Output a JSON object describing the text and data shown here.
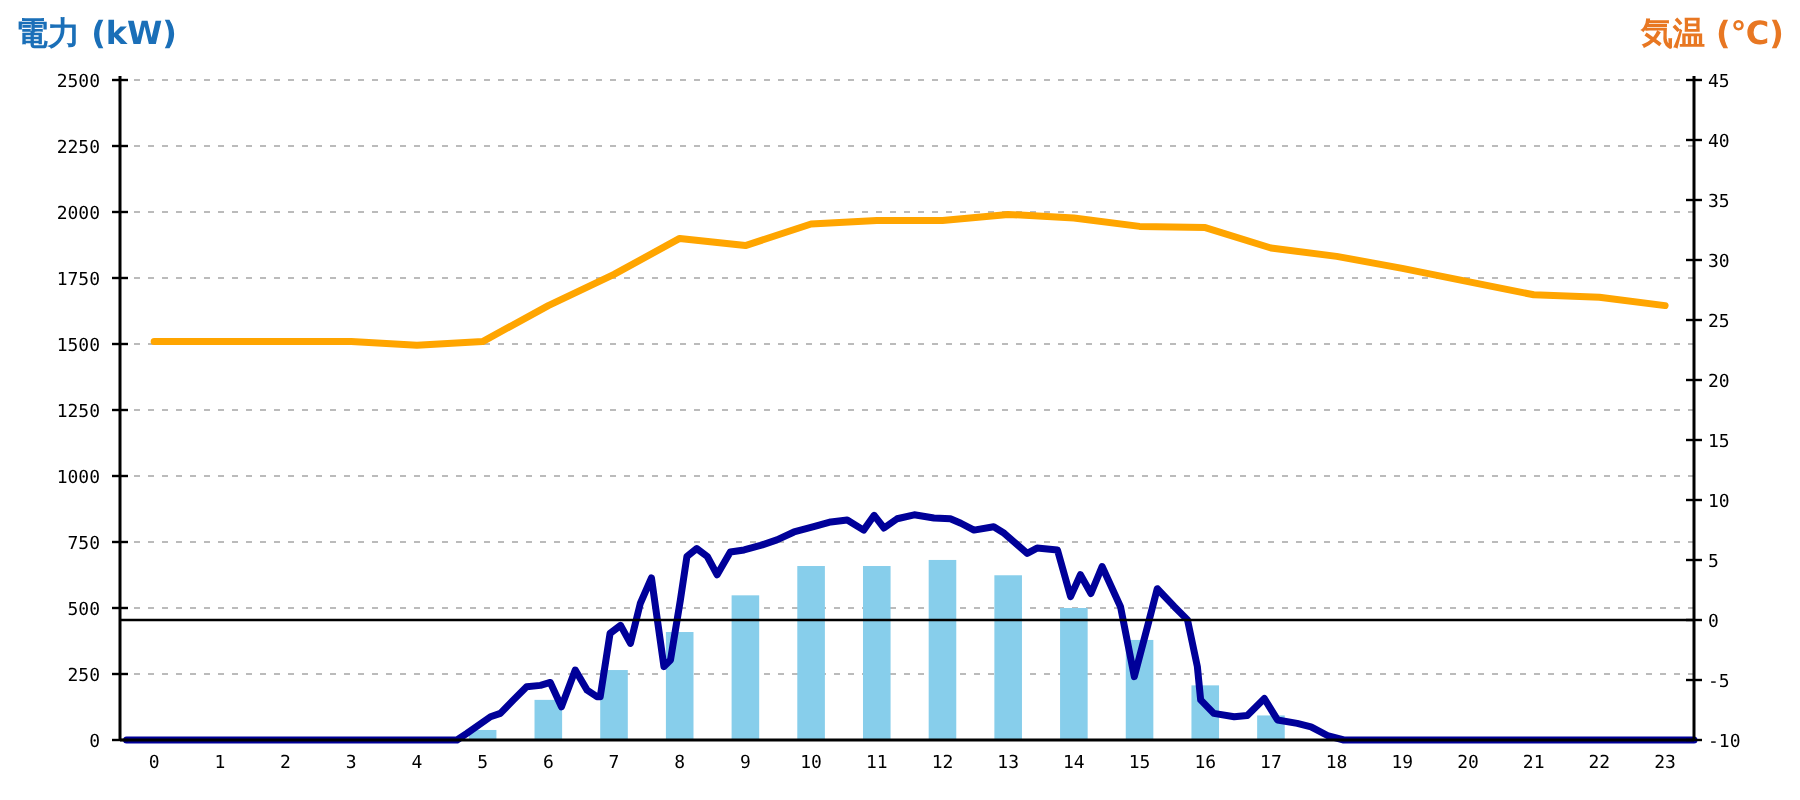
{
  "chart_data": {
    "type": "bar",
    "ylabel": "電力 (kW)",
    "y2label": "気温 (℃)",
    "x": [
      0,
      1,
      2,
      3,
      4,
      5,
      6,
      7,
      8,
      9,
      10,
      11,
      12,
      13,
      14,
      15,
      16,
      17,
      18,
      19,
      20,
      21,
      22,
      23
    ],
    "xlim": [
      -0.52,
      23.44
    ],
    "xticks": [
      0,
      1,
      2,
      3,
      4,
      5,
      6,
      7,
      8,
      9,
      10,
      11,
      12,
      13,
      14,
      15,
      16,
      17,
      18,
      19,
      20,
      21,
      22,
      23
    ],
    "ylim": [
      0,
      2500
    ],
    "yticks": [
      0,
      250,
      500,
      750,
      1000,
      1250,
      1500,
      1750,
      2000,
      2250,
      2500
    ],
    "y2lim": [
      -10,
      45
    ],
    "y2ticks": [
      -10,
      -5,
      0,
      5,
      10,
      15,
      20,
      25,
      30,
      35,
      40,
      45
    ],
    "grid": "y",
    "marker": "none",
    "line_style": "solid",
    "series": [
      {
        "color": "#87ceeb",
        "values": [
          0,
          0,
          0,
          0,
          0,
          38,
          152,
          265,
          409,
          548,
          659,
          659,
          682,
          624,
          500,
          379,
          207,
          93,
          0,
          0,
          0,
          0,
          0,
          0
        ]
      },
      {
        "type": "line",
        "color": "#000099",
        "x": [
          -0.42,
          4.61,
          4.76,
          5.12,
          5.27,
          5.47,
          5.67,
          5.88,
          6.03,
          6.2,
          6.41,
          6.59,
          6.74,
          6.79,
          6.94,
          7.1,
          7.25,
          7.4,
          7.57,
          7.76,
          7.86,
          8.01,
          8.11,
          8.26,
          8.42,
          8.57,
          8.77,
          8.98,
          9.23,
          9.48,
          9.74,
          10.04,
          10.3,
          10.55,
          10.8,
          10.96,
          11.11,
          11.31,
          11.57,
          11.87,
          12.12,
          12.28,
          12.48,
          12.78,
          12.94,
          13.29,
          13.44,
          13.75,
          13.95,
          14.1,
          14.26,
          14.43,
          14.71,
          14.92,
          15.12,
          15.27,
          15.53,
          15.73,
          15.88,
          15.93,
          16.13,
          16.44,
          16.64,
          16.9,
          17.1,
          17.4,
          17.61,
          17.86,
          18.11,
          23.44
        ],
        "values": [
          0,
          0,
          25,
          88,
          101,
          152,
          202,
          207,
          218,
          126,
          265,
          189,
          164,
          164,
          404,
          434,
          366,
          517,
          614,
          278,
          303,
          530,
          695,
          725,
          695,
          626,
          712,
          720,
          737,
          758,
          788,
          808,
          826,
          833,
          795,
          851,
          803,
          838,
          853,
          841,
          838,
          821,
          795,
          808,
          783,
          707,
          727,
          720,
          543,
          626,
          555,
          657,
          505,
          240,
          429,
          573,
          505,
          455,
          278,
          152,
          101,
          88,
          93,
          157,
          76,
          63,
          50,
          17,
          0,
          0
        ]
      },
      {
        "type": "line",
        "axis": "y2",
        "color": "#ffa500",
        "values": [
          23.2,
          23.2,
          23.2,
          23.2,
          22.9,
          23.2,
          26.2,
          28.8,
          31.8,
          31.2,
          33,
          33.3,
          33.3,
          33.8,
          33.5,
          32.8,
          32.7,
          31,
          30.3,
          29.3,
          28.2,
          27.1,
          26.9,
          26.2
        ]
      }
    ],
    "ref_lines": [
      {
        "axis": "y2",
        "value": 0,
        "color": "#000000",
        "line_style": "solid"
      }
    ]
  }
}
